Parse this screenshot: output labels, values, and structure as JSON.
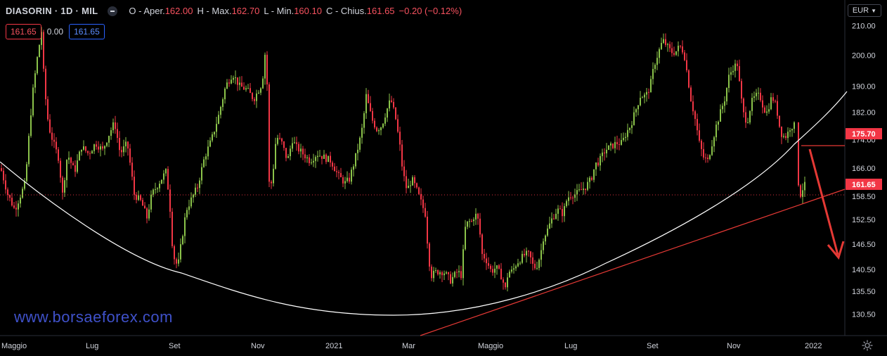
{
  "header": {
    "symbol": "DIASORIN · 1D · MIL",
    "open_label": "O - Aper.",
    "open": "162.00",
    "high_label": "H - Max.",
    "high": "162.70",
    "low_label": "L - Min.",
    "low": "160.10",
    "close_label": "C - Chius.",
    "close": "161.65",
    "change": "−0.20 (−0.12%)"
  },
  "indicator": {
    "value_a": "161.65",
    "value_b": "0.00",
    "value_c": "161.65"
  },
  "currency": "EUR",
  "watermark": "www.borsaeforex.com",
  "colors": {
    "up": "#8bc34a",
    "down": "#f23645",
    "arc": "#ffffff",
    "trendline": "#e53935",
    "arrow": "#e53935",
    "axis_text": "#d1d4dc"
  },
  "chart_data": {
    "type": "candlestick",
    "y_ticks": [
      "210.00",
      "200.00",
      "190.00",
      "182.00",
      "174.00",
      "166.00",
      "158.50",
      "152.50",
      "146.50",
      "140.50",
      "135.50",
      "130.50"
    ],
    "x_ticks": [
      "Maggio",
      "Lug",
      "Set",
      "Nov",
      "2021",
      "Mar",
      "Maggio",
      "Lug",
      "Set",
      "Nov",
      "2022"
    ],
    "price_labels": [
      {
        "value": "175.70",
        "color": "#f23645"
      },
      {
        "value": "161.65",
        "color": "#f23645"
      }
    ],
    "ylim": [
      127,
      214
    ],
    "scale": "log",
    "last_close": 161.65,
    "path_anchors": [
      [
        0,
        166
      ],
      [
        10,
        159
      ],
      [
        20,
        155
      ],
      [
        35,
        162
      ],
      [
        45,
        187
      ],
      [
        52,
        199
      ],
      [
        58,
        208
      ],
      [
        62,
        190
      ],
      [
        68,
        178
      ],
      [
        75,
        173
      ],
      [
        82,
        169
      ],
      [
        88,
        159
      ],
      [
        95,
        170
      ],
      [
        105,
        165
      ],
      [
        115,
        172
      ],
      [
        125,
        170
      ],
      [
        135,
        173
      ],
      [
        145,
        171
      ],
      [
        155,
        176
      ],
      [
        162,
        179
      ],
      [
        170,
        170
      ],
      [
        180,
        173
      ],
      [
        190,
        159
      ],
      [
        200,
        157
      ],
      [
        208,
        153
      ],
      [
        215,
        159
      ],
      [
        225,
        162
      ],
      [
        235,
        165
      ],
      [
        240,
        158
      ],
      [
        245,
        144
      ],
      [
        252,
        141
      ],
      [
        258,
        148
      ],
      [
        264,
        155
      ],
      [
        272,
        158
      ],
      [
        280,
        161
      ],
      [
        290,
        169
      ],
      [
        300,
        174
      ],
      [
        310,
        181
      ],
      [
        320,
        190
      ],
      [
        330,
        194
      ],
      [
        340,
        190
      ],
      [
        350,
        189
      ],
      [
        360,
        186
      ],
      [
        372,
        191
      ],
      [
        378,
        205
      ],
      [
        381,
        162
      ],
      [
        386,
        162
      ],
      [
        392,
        175
      ],
      [
        400,
        173
      ],
      [
        408,
        168
      ],
      [
        415,
        174
      ],
      [
        420,
        172
      ],
      [
        430,
        170
      ],
      [
        440,
        168
      ],
      [
        450,
        170
      ],
      [
        460,
        169
      ],
      [
        470,
        168
      ],
      [
        480,
        164
      ],
      [
        490,
        162
      ],
      [
        496,
        163
      ],
      [
        502,
        167
      ],
      [
        510,
        173
      ],
      [
        515,
        178
      ],
      [
        520,
        187
      ],
      [
        528,
        180
      ],
      [
        535,
        177
      ],
      [
        542,
        178
      ],
      [
        548,
        182
      ],
      [
        555,
        186
      ],
      [
        562,
        180
      ],
      [
        568,
        172
      ],
      [
        572,
        165
      ],
      [
        578,
        160
      ],
      [
        585,
        163
      ],
      [
        590,
        161
      ],
      [
        598,
        157
      ],
      [
        604,
        154
      ],
      [
        608,
        145
      ],
      [
        612,
        139
      ],
      [
        620,
        140
      ],
      [
        630,
        140
      ],
      [
        640,
        138
      ],
      [
        650,
        140
      ],
      [
        656,
        139
      ],
      [
        660,
        150
      ],
      [
        665,
        152
      ],
      [
        670,
        152
      ],
      [
        675,
        154
      ],
      [
        680,
        152
      ],
      [
        685,
        144
      ],
      [
        690,
        143
      ],
      [
        698,
        140
      ],
      [
        705,
        141
      ],
      [
        712,
        139
      ],
      [
        718,
        136
      ],
      [
        722,
        140
      ],
      [
        728,
        140
      ],
      [
        734,
        142
      ],
      [
        740,
        143
      ],
      [
        746,
        144
      ],
      [
        752,
        144
      ],
      [
        758,
        141
      ],
      [
        762,
        141
      ],
      [
        768,
        144
      ],
      [
        772,
        148
      ],
      [
        778,
        150
      ],
      [
        785,
        153
      ],
      [
        792,
        155
      ],
      [
        800,
        154
      ],
      [
        806,
        158
      ],
      [
        812,
        159
      ],
      [
        818,
        159
      ],
      [
        825,
        160
      ],
      [
        832,
        161
      ],
      [
        840,
        163
      ],
      [
        846,
        167
      ],
      [
        852,
        168
      ],
      [
        860,
        171
      ],
      [
        868,
        172
      ],
      [
        876,
        173
      ],
      [
        884,
        173
      ],
      [
        890,
        176
      ],
      [
        896,
        178
      ],
      [
        904,
        183
      ],
      [
        910,
        187
      ],
      [
        918,
        187
      ],
      [
        924,
        190
      ],
      [
        930,
        197
      ],
      [
        936,
        201
      ],
      [
        942,
        205
      ],
      [
        948,
        203
      ],
      [
        954,
        201
      ],
      [
        960,
        201
      ],
      [
        966,
        203
      ],
      [
        972,
        201
      ],
      [
        976,
        195
      ],
      [
        982,
        186
      ],
      [
        988,
        180
      ],
      [
        994,
        173
      ],
      [
        1000,
        169
      ],
      [
        1006,
        168
      ],
      [
        1012,
        173
      ],
      [
        1018,
        178
      ],
      [
        1024,
        182
      ],
      [
        1030,
        186
      ],
      [
        1036,
        193
      ],
      [
        1042,
        196
      ],
      [
        1048,
        197
      ],
      [
        1052,
        189
      ],
      [
        1056,
        182
      ],
      [
        1062,
        179
      ],
      [
        1068,
        185
      ],
      [
        1074,
        187
      ],
      [
        1080,
        187
      ],
      [
        1086,
        183
      ],
      [
        1090,
        182
      ],
      [
        1096,
        186
      ],
      [
        1100,
        186
      ],
      [
        1104,
        183
      ],
      [
        1108,
        178
      ],
      [
        1112,
        175
      ],
      [
        1118,
        175
      ],
      [
        1124,
        178
      ],
      [
        1130,
        178
      ],
      [
        1134,
        163
      ],
      [
        1138,
        159
      ],
      [
        1142,
        161
      ],
      [
        1146,
        161.65
      ]
    ]
  }
}
